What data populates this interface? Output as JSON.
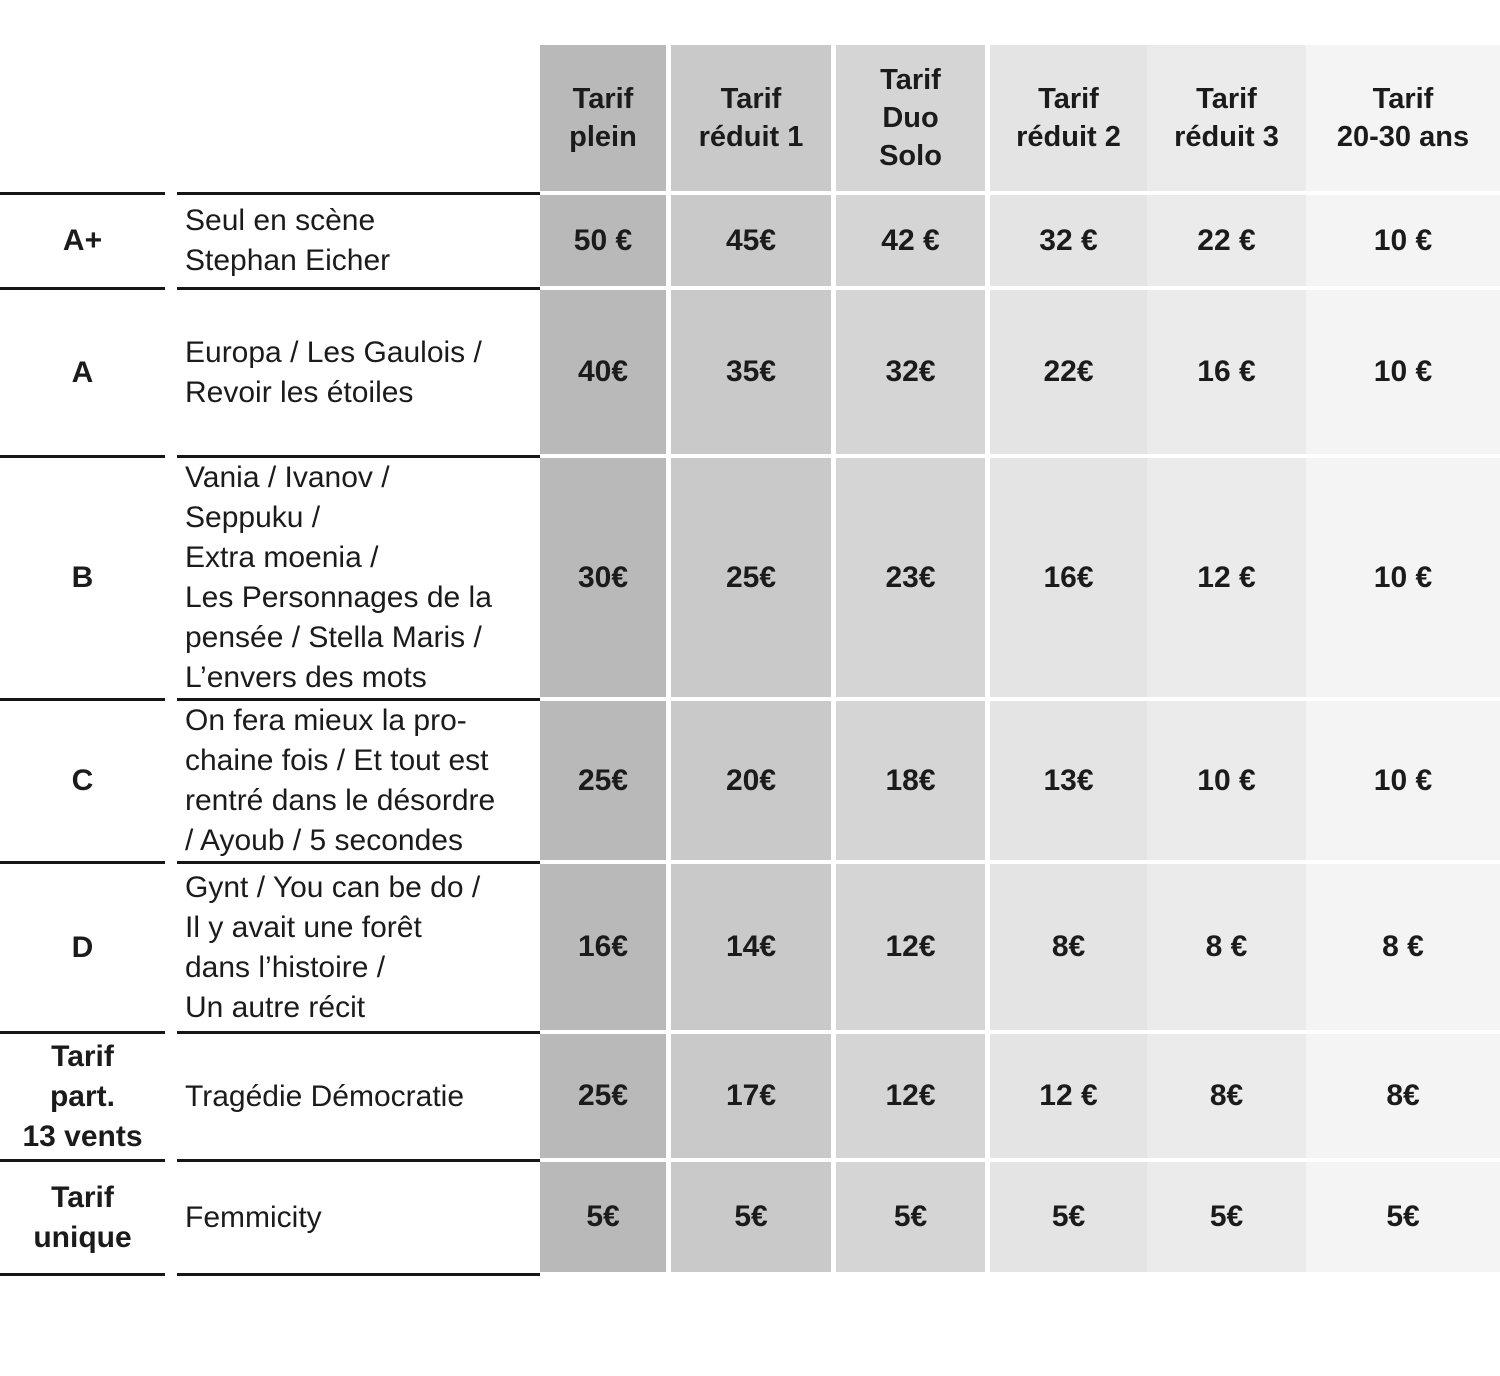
{
  "table": {
    "columns": [
      {
        "label": "Tarif\nplein",
        "bg": "#b9b9b9"
      },
      {
        "label": "Tarif\nréduit 1",
        "bg": "#c9c9c9"
      },
      {
        "label": "Tarif\nDuo\nSolo",
        "bg": "#d5d5d5"
      },
      {
        "label": "Tarif\nréduit 2",
        "bg": "#e4e4e4"
      },
      {
        "label": "Tarif\nréduit 3",
        "bg": "#ebebeb"
      },
      {
        "label": "Tarif\n20-30 ans",
        "bg": "#f4f4f4"
      }
    ],
    "rows": [
      {
        "category": "A+",
        "shows": "Seul en scène\nStephan Eicher",
        "prices": [
          "50 €",
          "45€",
          "42 €",
          "32 €",
          "22 €",
          "10 €"
        ]
      },
      {
        "category": "A",
        "shows": "Europa / Les Gaulois /\nRevoir les étoiles",
        "prices": [
          "40€",
          "35€",
          "32€",
          "22€",
          "16 €",
          "10 €"
        ]
      },
      {
        "category": "B",
        "shows": "Vania / Ivanov /\nSeppuku /\nExtra moenia /\nLes Personnages de la\npensée / Stella Maris /\nL’envers des mots",
        "prices": [
          "30€",
          "25€",
          "23€",
          "16€",
          "12 €",
          "10 €"
        ]
      },
      {
        "category": "C",
        "shows": "On fera mieux la pro-\nchaine fois / Et tout est\nrentré dans le désordre\n/ Ayoub / 5 secondes",
        "prices": [
          "25€",
          "20€",
          "18€",
          "13€",
          "10 €",
          "10 €"
        ]
      },
      {
        "category": "D",
        "shows": "Gynt / You can be do /\nIl y avait une forêt\ndans l’histoire /\nUn autre récit",
        "prices": [
          "16€",
          "14€",
          "12€",
          "8€",
          "8 €",
          "8 €"
        ]
      },
      {
        "category": "Tarif\npart.\n13 vents",
        "shows": "Tragédie Démocratie",
        "prices": [
          "25€",
          "17€",
          "12€",
          "12 €",
          "8€",
          "8€"
        ]
      },
      {
        "category": "Tarif\nunique",
        "shows": "Femmicity",
        "prices": [
          "5€",
          "5€",
          "5€",
          "5€",
          "5€",
          "5€"
        ]
      }
    ],
    "currency_symbol": "€"
  }
}
